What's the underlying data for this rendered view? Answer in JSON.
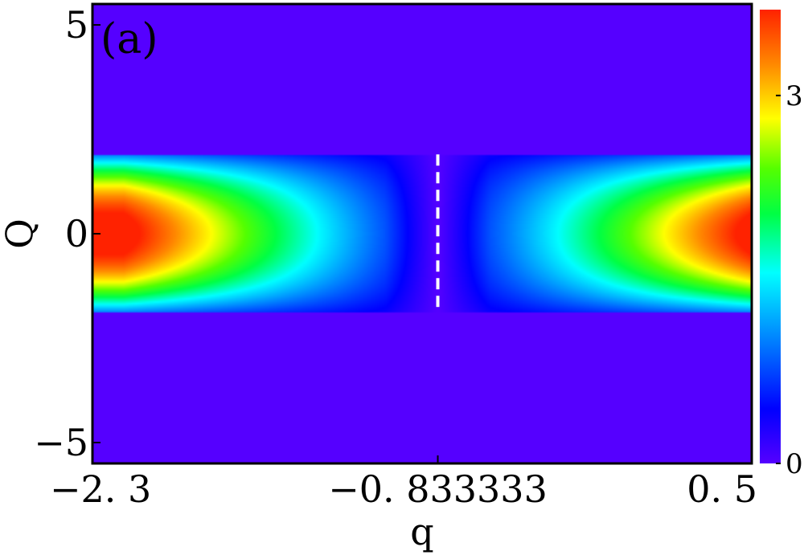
{
  "chart_data": {
    "type": "heatmap",
    "panel_label": "(a)",
    "xlabel": "q",
    "ylabel": "Q",
    "xlim": [
      -2.3,
      0.5
    ],
    "ylim": [
      -5.5,
      5.5
    ],
    "x_ticks": [
      {
        "value": -2.3,
        "label": "−2. 3"
      },
      {
        "value": -0.833333,
        "label": "−0. 833333"
      },
      {
        "value": 0.5,
        "label": "0. 5"
      }
    ],
    "y_ticks": [
      {
        "value": 5,
        "label": "5"
      },
      {
        "value": 0,
        "label": "0"
      },
      {
        "value": -5,
        "label": "−5"
      }
    ],
    "colorbar": {
      "colormap": "rainbow",
      "min": 0,
      "max": 3.7,
      "ticks": [
        {
          "value": 0,
          "label": "0"
        },
        {
          "value": 3,
          "label": "3"
        }
      ]
    },
    "nonzero_region": {
      "Q_min": -1.9,
      "Q_max": 1.9
    },
    "peak_values": [
      {
        "q": -2.3,
        "Q": 0,
        "value": 3.6
      },
      {
        "q": 0.5,
        "Q": 0,
        "value": 3.6
      }
    ],
    "minimum_q": -0.833333,
    "dashed_line": {
      "q": -0.833333,
      "Q_range": [
        -1.9,
        1.9
      ],
      "color": "#ffffff"
    },
    "background_value": 0,
    "grid": false
  }
}
